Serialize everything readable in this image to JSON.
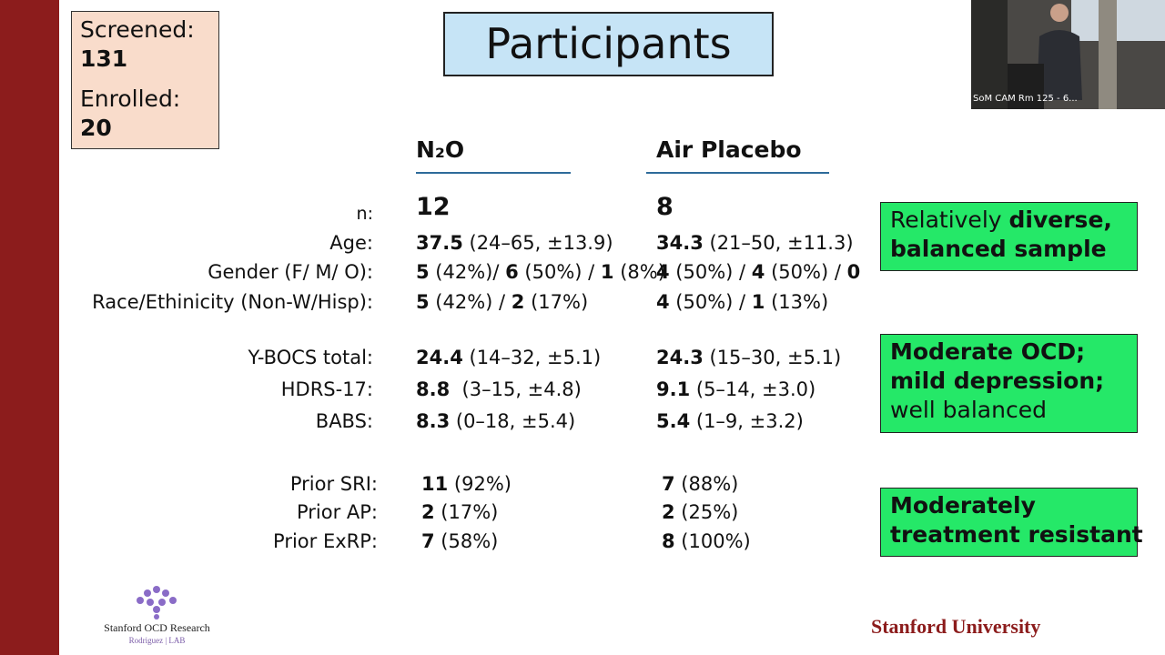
{
  "counts": [
    {
      "label": "Screened:",
      "value": "131"
    },
    {
      "label": "Enrolled:",
      "value": "20"
    }
  ],
  "title": "Participants",
  "table": {
    "columns": [
      "N₂O",
      "Air Placebo"
    ],
    "rows": [
      {
        "label": "n:",
        "cells": [
          [
            {
              "text": "12",
              "bold": true
            }
          ],
          [
            {
              "text": "8",
              "bold": true
            }
          ]
        ]
      },
      {
        "label": "Age:",
        "cells": [
          [
            {
              "text": "37.5",
              "bold": true
            },
            {
              "text": " (24–65, ±13.9)",
              "bold": false
            }
          ],
          [
            {
              "text": "34.3",
              "bold": true
            },
            {
              "text": " (21–50, ±11.3)",
              "bold": false
            }
          ]
        ]
      },
      {
        "label": "Gender (F/ M/ O):",
        "cells": [
          [
            {
              "text": "5",
              "bold": true
            },
            {
              "text": " (42%)/ ",
              "bold": false
            },
            {
              "text": "6",
              "bold": true
            },
            {
              "text": " (50%) / ",
              "bold": false
            },
            {
              "text": "1",
              "bold": true
            },
            {
              "text": " (8%)",
              "bold": false
            }
          ],
          [
            {
              "text": "4",
              "bold": true
            },
            {
              "text": " (50%) / ",
              "bold": false
            },
            {
              "text": "4",
              "bold": true
            },
            {
              "text": " (50%) / ",
              "bold": false
            },
            {
              "text": "0",
              "bold": true
            }
          ]
        ]
      },
      {
        "label": "Race/Ethinicity (Non-W/Hisp):",
        "cells": [
          [
            {
              "text": "5",
              "bold": true
            },
            {
              "text": " (42%) / ",
              "bold": false
            },
            {
              "text": "2",
              "bold": true
            },
            {
              "text": " (17%)",
              "bold": false
            }
          ],
          [
            {
              "text": "4",
              "bold": true
            },
            {
              "text": " (50%) / ",
              "bold": false
            },
            {
              "text": "1",
              "bold": true
            },
            {
              "text": " (13%)",
              "bold": false
            }
          ]
        ]
      },
      {
        "label": "Y-BOCS total:",
        "cells": [
          [
            {
              "text": "24.4",
              "bold": true
            },
            {
              "text": " (14–32, ±5.1)",
              "bold": false
            }
          ],
          [
            {
              "text": "24.3",
              "bold": true
            },
            {
              "text": " (15–30, ±5.1)",
              "bold": false
            }
          ]
        ]
      },
      {
        "label": "HDRS-17:",
        "cells": [
          [
            {
              "text": "8.8",
              "bold": true
            },
            {
              "text": "  (3–15, ±4.8)",
              "bold": false
            }
          ],
          [
            {
              "text": "9.1",
              "bold": true
            },
            {
              "text": " (5–14, ±3.0)",
              "bold": false
            }
          ]
        ]
      },
      {
        "label": "BABS:",
        "cells": [
          [
            {
              "text": "8.3",
              "bold": true
            },
            {
              "text": " (0–18, ±5.4)",
              "bold": false
            }
          ],
          [
            {
              "text": "5.4",
              "bold": true
            },
            {
              "text": " (1–9, ±3.2)",
              "bold": false
            }
          ]
        ]
      },
      {
        "label": "Prior SRI:",
        "cells": [
          [
            {
              "text": "11",
              "bold": true
            },
            {
              "text": " (92%)",
              "bold": false
            }
          ],
          [
            {
              "text": "7",
              "bold": true
            },
            {
              "text": " (88%)",
              "bold": false
            }
          ]
        ]
      },
      {
        "label": "Prior AP:",
        "cells": [
          [
            {
              "text": "2",
              "bold": true
            },
            {
              "text": " (17%)",
              "bold": false
            }
          ],
          [
            {
              "text": "2",
              "bold": true
            },
            {
              "text": " (25%)",
              "bold": false
            }
          ]
        ]
      },
      {
        "label": "Prior ExRP:",
        "cells": [
          [
            {
              "text": "7",
              "bold": true
            },
            {
              "text": " (58%)",
              "bold": false
            }
          ],
          [
            {
              "text": "8",
              "bold": true
            },
            {
              "text": " (100%)",
              "bold": false
            }
          ]
        ]
      }
    ]
  },
  "callouts": [
    [
      [
        {
          "text": "Relatively ",
          "bold": false
        },
        {
          "text": "diverse,",
          "bold": true
        }
      ],
      [
        {
          "text": "balanced sample",
          "bold": true
        }
      ]
    ],
    [
      [
        {
          "text": "Moderate OCD;",
          "bold": true
        }
      ],
      [
        {
          "text": "mild depression;",
          "bold": true
        }
      ],
      [
        {
          "text": "well balanced",
          "bold": false
        }
      ]
    ],
    [
      [
        {
          "text": "Moderately",
          "bold": true
        }
      ],
      [
        {
          "text": "treatment resistant",
          "bold": true
        }
      ]
    ]
  ],
  "video_label": "SoM CAM Rm 125 - 6...",
  "logo": {
    "name": "Stanford OCD Research",
    "lab": "Rodriguez | LAB"
  },
  "footer": "Stanford University"
}
